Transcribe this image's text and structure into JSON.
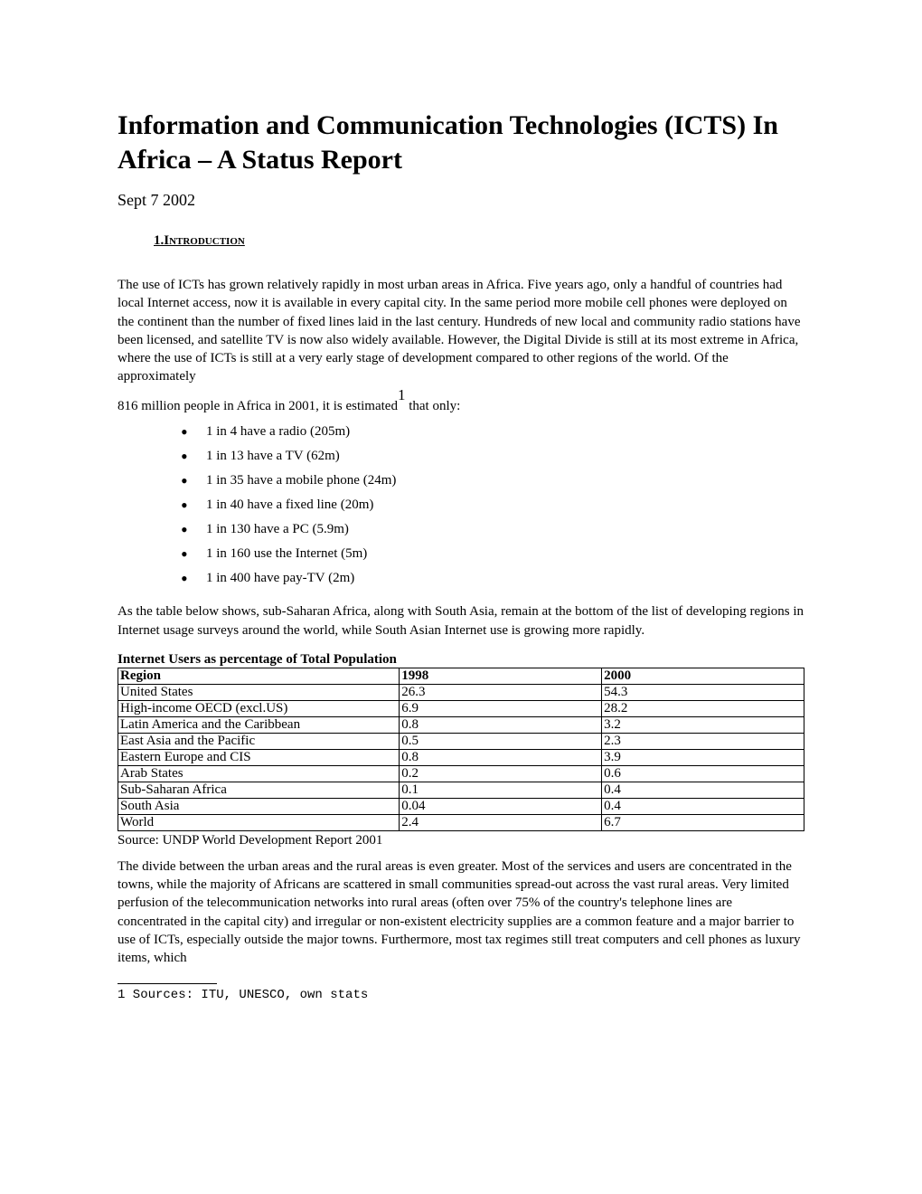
{
  "title": "Information and Communication Technologies (ICTS) In Africa – A Status Report",
  "date": "Sept 7 2002",
  "section_heading": "1.Introduction",
  "para1": "The use of ICTs has grown relatively rapidly in most urban areas in Africa.  Five years ago, only a handful of countries had local Internet access, now it is available in every capital city.  In the same period more mobile cell phones were deployed on the continent than the number of fixed lines laid in the last century. Hundreds of new local and community radio stations have been licensed, and satellite TV is now also widely available. However,  the Digital Divide is still at its most extreme in Africa, where the use of ICTs is still at a very early stage of development compared to other regions of the world.  Of the approximately",
  "para2_prefix": "816 million people in Africa in 2001, it is estimated",
  "footnote_marker": "1",
  "para2_suffix": " that only:",
  "bullets": [
    "1 in 4 have a radio (205m)",
    "1 in 13 have a TV (62m)",
    "1 in 35 have a mobile phone (24m)",
    "1 in 40 have a fixed line (20m)",
    "1 in 130 have a PC (5.9m)",
    "1 in 160 use the Internet (5m)",
    "1 in 400 have pay-TV (2m)"
  ],
  "para3": "As the table below shows, sub-Saharan Africa, along with South Asia, remain at the bottom of the list of developing regions in Internet usage surveys around the world, while South Asian Internet use is growing more rapidly.",
  "table": {
    "title": "Internet Users as percentage of Total Population",
    "columns": [
      "Region",
      "1998",
      "2000"
    ],
    "col_widths": [
      "41%",
      "29.5%",
      "29.5%"
    ],
    "rows": [
      [
        "United States",
        "26.3",
        "54.3"
      ],
      [
        "High-income OECD (excl.US)",
        "6.9",
        "28.2"
      ],
      [
        "Latin America and the Caribbean",
        "0.8",
        "3.2"
      ],
      [
        "East Asia and the Pacific",
        "0.5",
        "2.3"
      ],
      [
        "Eastern Europe and CIS",
        "0.8",
        "3.9"
      ],
      [
        "Arab States",
        "0.2",
        "0.6"
      ],
      [
        "Sub-Saharan Africa",
        "0.1",
        "0.4"
      ],
      [
        "South Asia",
        "0.04",
        "0.4"
      ],
      [
        "World",
        "2.4",
        "6.7"
      ]
    ]
  },
  "source": "Source: UNDP World Development Report 2001",
  "para4": "The divide between the urban areas and the rural areas is even greater. Most of the services and users are concentrated in the towns, while the majority of Africans are scattered in small communities spread-out across the vast rural areas. Very limited perfusion of the telecommunication networks into rural areas (often over 75% of the country's telephone lines are concentrated in the capital city) and irregular or non-existent electricity supplies are a common feature and a major barrier to use of ICTs, especially outside the major towns. Furthermore, most tax regimes still treat computers and cell phones as luxury items, which",
  "footnote": "1 Sources: ITU, UNESCO, own stats"
}
